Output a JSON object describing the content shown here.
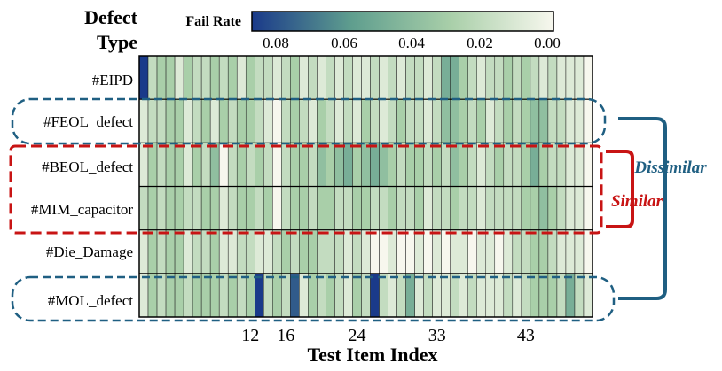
{
  "chart_data": {
    "type": "heatmap",
    "title_line1": "Defect",
    "title_line2": "Type",
    "colorbar": {
      "title": "Fail Rate",
      "ticks": [
        "0.08",
        "0.06",
        "0.04",
        "0.02",
        "0.00"
      ],
      "range": [
        0.0,
        0.09
      ],
      "colors": [
        "#1a3a8a",
        "#5f9e8e",
        "#a9cfa9",
        "#f7f7ee"
      ]
    },
    "rows": [
      "#EIPD",
      "#FEOL_defect",
      "#BEOL_defect",
      "#MIM_capacitor",
      "#Die_Damage",
      "#MOL_defect"
    ],
    "x_ticks": [
      {
        "label": "12",
        "index": 12
      },
      {
        "label": "16",
        "index": 16
      },
      {
        "label": "24",
        "index": 24
      },
      {
        "label": "33",
        "index": 33
      },
      {
        "label": "43",
        "index": 43
      }
    ],
    "xlabel": "Test Item Index",
    "n_columns": 51,
    "values": [
      [
        0.09,
        0.02,
        0.03,
        0.03,
        0.01,
        0.03,
        0.02,
        0.02,
        0.03,
        0.02,
        0.03,
        0.01,
        0.03,
        0.02,
        0.02,
        0.01,
        0.02,
        0.03,
        0.01,
        0.02,
        0.01,
        0.02,
        0.01,
        0.02,
        0.01,
        0.01,
        0.02,
        0.01,
        0.02,
        0.01,
        0.02,
        0.02,
        0.01,
        0.02,
        0.05,
        0.05,
        0.03,
        0.02,
        0.01,
        0.02,
        0.02,
        0.03,
        0.02,
        0.03,
        0.02,
        0.01,
        0.02,
        0.01,
        0.01,
        0.01,
        0.0
      ],
      [
        0.01,
        0.02,
        0.02,
        0.03,
        0.03,
        0.01,
        0.02,
        0.03,
        0.01,
        0.03,
        0.02,
        0.03,
        0.03,
        0.02,
        0.01,
        0.0,
        0.02,
        0.03,
        0.02,
        0.01,
        0.03,
        0.02,
        0.01,
        0.02,
        0.01,
        0.03,
        0.02,
        0.01,
        0.02,
        0.03,
        0.02,
        0.02,
        0.01,
        0.02,
        0.04,
        0.04,
        0.03,
        0.02,
        0.03,
        0.01,
        0.02,
        0.03,
        0.02,
        0.03,
        0.04,
        0.04,
        0.02,
        0.02,
        0.01,
        0.01,
        0.0
      ],
      [
        0.01,
        0.03,
        0.02,
        0.03,
        0.03,
        0.01,
        0.03,
        0.02,
        0.04,
        0.0,
        0.02,
        0.03,
        0.02,
        0.03,
        0.02,
        0.0,
        0.02,
        0.03,
        0.03,
        0.02,
        0.04,
        0.03,
        0.04,
        0.05,
        0.03,
        0.04,
        0.05,
        0.04,
        0.03,
        0.02,
        0.03,
        0.03,
        0.02,
        0.03,
        0.02,
        0.04,
        0.03,
        0.02,
        0.01,
        0.02,
        0.03,
        0.02,
        0.02,
        0.03,
        0.05,
        0.03,
        0.02,
        0.02,
        0.01,
        0.01,
        0.0
      ],
      [
        0.02,
        0.03,
        0.02,
        0.03,
        0.03,
        0.02,
        0.02,
        0.03,
        0.03,
        0.01,
        0.02,
        0.03,
        0.03,
        0.02,
        0.03,
        0.0,
        0.02,
        0.03,
        0.03,
        0.02,
        0.03,
        0.03,
        0.02,
        0.02,
        0.03,
        0.03,
        0.02,
        0.02,
        0.03,
        0.02,
        0.02,
        0.03,
        0.01,
        0.02,
        0.02,
        0.03,
        0.02,
        0.02,
        0.01,
        0.02,
        0.02,
        0.02,
        0.02,
        0.03,
        0.03,
        0.04,
        0.03,
        0.02,
        0.01,
        0.01,
        0.0
      ],
      [
        0.01,
        0.03,
        0.02,
        0.03,
        0.03,
        0.01,
        0.02,
        0.02,
        0.03,
        0.01,
        0.01,
        0.02,
        0.02,
        0.01,
        0.01,
        0.02,
        0.03,
        0.02,
        0.03,
        0.03,
        0.02,
        0.02,
        0.02,
        0.01,
        0.02,
        0.01,
        0.0,
        0.0,
        0.01,
        0.0,
        0.0,
        0.01,
        0.0,
        0.01,
        0.0,
        0.01,
        0.01,
        0.0,
        0.01,
        0.01,
        0.0,
        0.01,
        0.02,
        0.02,
        0.03,
        0.03,
        0.02,
        0.01,
        0.01,
        0.01,
        0.0
      ],
      [
        0.01,
        0.03,
        0.02,
        0.03,
        0.03,
        0.02,
        0.03,
        0.03,
        0.03,
        0.02,
        0.03,
        0.02,
        0.03,
        0.09,
        0.02,
        0.03,
        0.02,
        0.08,
        0.01,
        0.03,
        0.02,
        0.03,
        0.02,
        0.01,
        0.03,
        0.02,
        0.09,
        0.02,
        0.01,
        0.02,
        0.05,
        0.01,
        0.02,
        0.01,
        0.01,
        0.02,
        0.01,
        0.02,
        0.01,
        0.01,
        0.01,
        0.02,
        0.01,
        0.02,
        0.03,
        0.03,
        0.03,
        0.02,
        0.05,
        0.02,
        0.01
      ]
    ],
    "annotations": [
      {
        "text": "Similar",
        "color": "#c81414",
        "groups": [
          "#BEOL_defect",
          "#MIM_capacitor"
        ]
      },
      {
        "text": "Dissimilar",
        "color": "#1f5f82",
        "groups": [
          "#FEOL_defect",
          "#MOL_defect"
        ]
      }
    ]
  }
}
